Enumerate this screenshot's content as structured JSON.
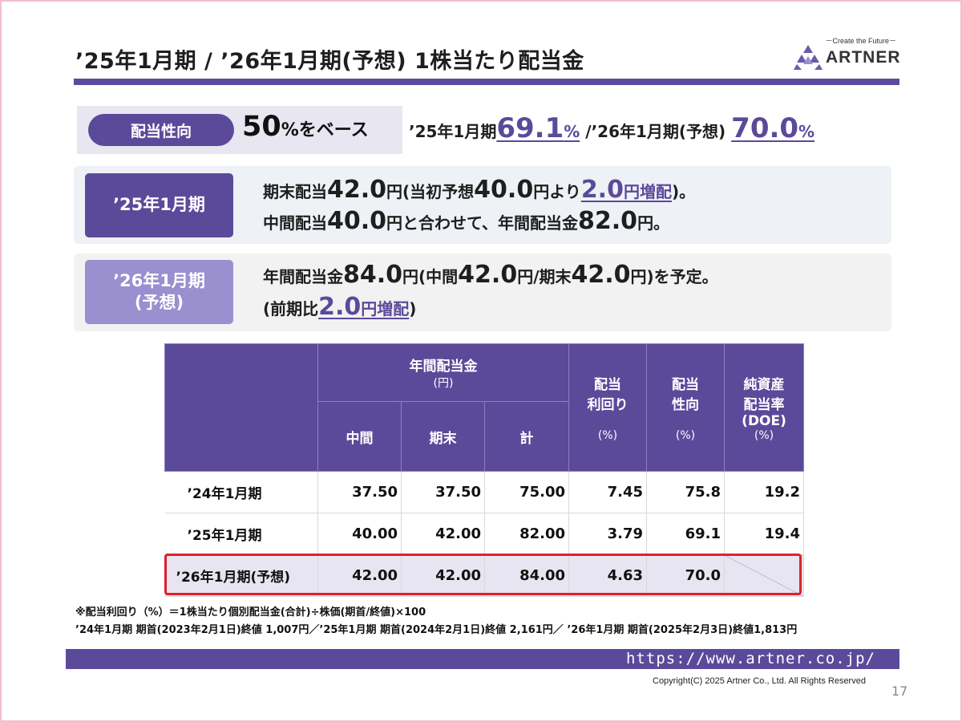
{
  "title": "’25年1月期 / ’26年1月期(予想) 1株当たり配当金",
  "logo": {
    "tagline": "－Create the Future－",
    "wordmark": "ARTNER"
  },
  "payout": {
    "label": "配当性向",
    "base_num": "50",
    "base_suffix": "%をベース",
    "fy25_prefix": "’25年1月期",
    "fy25_value": "69.1",
    "fy25_unit": "%",
    "separator": " /’26年1月期(予想) ",
    "fy26_value": "70.0",
    "fy26_unit": "%"
  },
  "fy25": {
    "label": "’25年1月期",
    "line1": [
      "期末配当",
      "42.0",
      "円(当初予想",
      "40.0",
      "円より",
      "2.0",
      "円増配",
      ")。"
    ],
    "line2": [
      "中間配当",
      "40.0",
      "円と合わせて、年間配当金",
      "82.0",
      "円。"
    ]
  },
  "fy26": {
    "label_line1": "’26年1月期",
    "label_line2": "(予想)",
    "line1": [
      "年間配当金",
      "84.0",
      "円(中間",
      "42.0",
      "円/期末",
      "42.0",
      "円)を予定。"
    ],
    "line2": [
      "(前期比",
      "2.0",
      "円増配",
      ")"
    ]
  },
  "table": {
    "annual_header": "年間配当金",
    "annual_unit": "(円)",
    "col_interim": "中間",
    "col_yearend": "期末",
    "col_total": "計",
    "yield_header": [
      "配当",
      "利回り"
    ],
    "payout_header": [
      "配当",
      "性向"
    ],
    "doe_header": [
      "純資産",
      "配当率",
      "(DOE)"
    ],
    "pct_unit": "(%)",
    "rows": [
      {
        "period": "’24年1月期",
        "interim": "37.50",
        "yearend": "37.50",
        "total": "75.00",
        "yield": "7.45",
        "payout": "75.8",
        "doe": "19.2"
      },
      {
        "period": "’25年1月期",
        "interim": "40.00",
        "yearend": "42.00",
        "total": "82.00",
        "yield": "3.79",
        "payout": "69.1",
        "doe": "19.4"
      },
      {
        "period": "’26年1月期(予想)",
        "interim": "42.00",
        "yearend": "42.00",
        "total": "84.00",
        "yield": "4.63",
        "payout": "70.0",
        "doe": ""
      }
    ]
  },
  "notes": [
    "※配当利回り（%）＝1株当たり個別配当金(合計)÷株価(期首/終値)×100",
    "’24年1月期 期首(2023年2月1日)終値 1,007円／’25年1月期 期首(2024年2月1日)終値 2,161円／ ’26年1月期 期首(2025年2月3日)終値1,813円"
  ],
  "footer": {
    "url": "https://www.artner.co.jp/",
    "copyright": "Copyright(C) 2025 Artner Co., Ltd. All Rights Reserved",
    "page": "17"
  },
  "colors": {
    "accent": "#5b4a9a",
    "accent_light": "#9a8fcf",
    "highlight_frame": "#e0202a",
    "panel": "#eef1f6"
  }
}
